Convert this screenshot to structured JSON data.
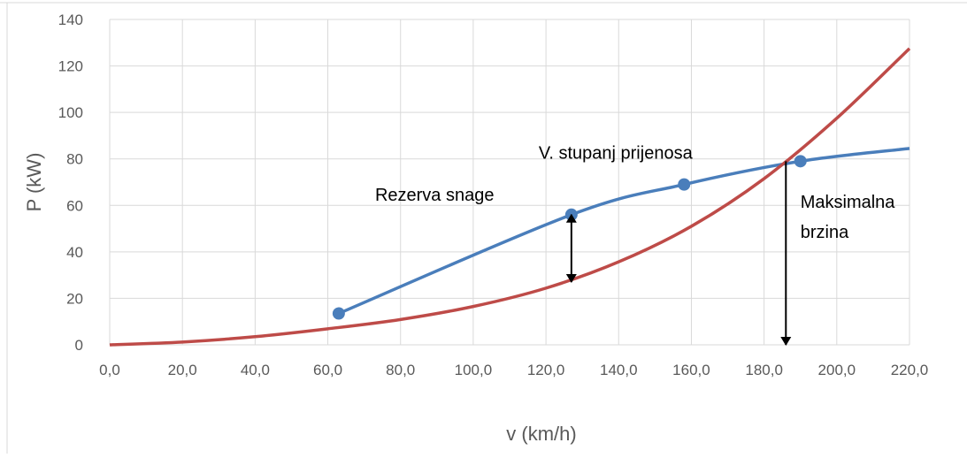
{
  "chart_data": {
    "type": "line",
    "xlabel": "v (km/h)",
    "ylabel": "P (kW)",
    "xlim": [
      0,
      220
    ],
    "ylim": [
      0,
      140
    ],
    "x_ticks": [
      "0,0",
      "20,0",
      "40,0",
      "60,0",
      "80,0",
      "100,0",
      "120,0",
      "140,0",
      "160,0",
      "180,0",
      "200,0",
      "220,0"
    ],
    "y_ticks": [
      "0",
      "20",
      "40",
      "60",
      "80",
      "100",
      "120",
      "140"
    ],
    "grid": true,
    "series": [
      {
        "color": "#4a7ebb",
        "markers": true,
        "x": [
          63,
          127,
          158,
          190,
          220
        ],
        "y": [
          13.5,
          56,
          69,
          79,
          84.5
        ],
        "marked_points": [
          [
            63,
            13.5
          ],
          [
            127,
            56
          ],
          [
            158,
            69
          ],
          [
            190,
            79
          ]
        ]
      },
      {
        "color": "#be4b48",
        "markers": false,
        "x": [
          0,
          20,
          40,
          60,
          80,
          100,
          120,
          140,
          160,
          180,
          200,
          220
        ],
        "y": [
          0,
          1.2,
          3.5,
          6.9,
          10.9,
          16.5,
          24.4,
          35.7,
          51,
          71.5,
          97.5,
          127.5
        ]
      }
    ],
    "annotations": [
      {
        "key": "rezerva",
        "text": "Rezerva snage",
        "x": 73,
        "y": 62
      },
      {
        "key": "stupanj",
        "text": "V. stupanj prijenosa",
        "x": 118,
        "y": 80
      },
      {
        "key": "maks1",
        "text": "Maksimalna",
        "x": 190,
        "y": 59
      },
      {
        "key": "maks2",
        "text": "brzina",
        "x": 190,
        "y": 46
      }
    ],
    "arrows": [
      {
        "name": "power-reserve-arrow",
        "x": 127,
        "y_from": 56,
        "y_to": 27,
        "double": true
      },
      {
        "name": "max-speed-arrow",
        "x": 186,
        "y_from": 79,
        "y_to": 0,
        "double": false
      }
    ],
    "colors": {
      "grid": "#d9d9d9",
      "text": "#595959",
      "arrow": "#000000",
      "frame": "#d9d9d9"
    }
  }
}
